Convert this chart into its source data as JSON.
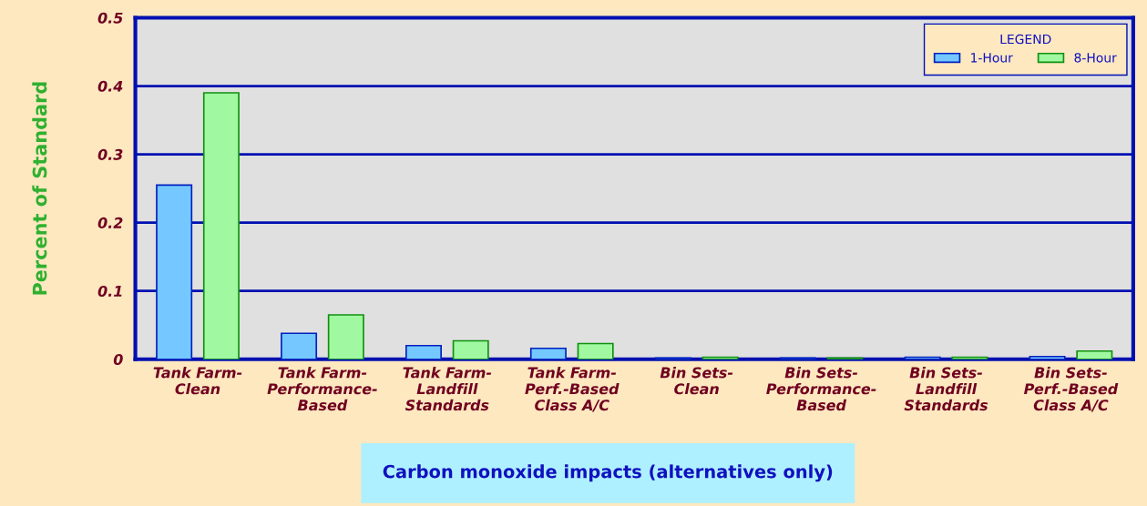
{
  "chart_data": {
    "type": "bar",
    "xlabel": "Carbon monoxide impacts (alternatives only)",
    "ylabel": "Percent of Standard",
    "legend_title": "LEGEND",
    "categories": [
      "Tank Farm-\nClean",
      "Tank Farm-\nPerformance-\nBased",
      "Tank Farm-\nLandfill\nStandards",
      "Tank Farm-\nPerf.-Based\nClass A/C",
      "Bin Sets-\nClean",
      "Bin Sets-\nPerformance-\nBased",
      "Bin Sets-\nLandfill\nStandards",
      "Bin Sets-\nPerf.-Based\nClass A/C"
    ],
    "series": [
      {
        "name": "1-Hour",
        "color": "#74c8ff",
        "values": [
          0.255,
          0.038,
          0.02,
          0.016,
          0.002,
          0.002,
          0.003,
          0.004
        ]
      },
      {
        "name": "8-Hour",
        "color": "#a0f8a0",
        "values": [
          0.39,
          0.065,
          0.027,
          0.023,
          0.003,
          0.002,
          0.003,
          0.012
        ]
      }
    ],
    "ylim": [
      0,
      0.5
    ],
    "yticks": [
      0,
      0.1,
      0.2,
      0.3,
      0.4,
      0.5
    ],
    "grid": "y",
    "legend": "top right"
  }
}
